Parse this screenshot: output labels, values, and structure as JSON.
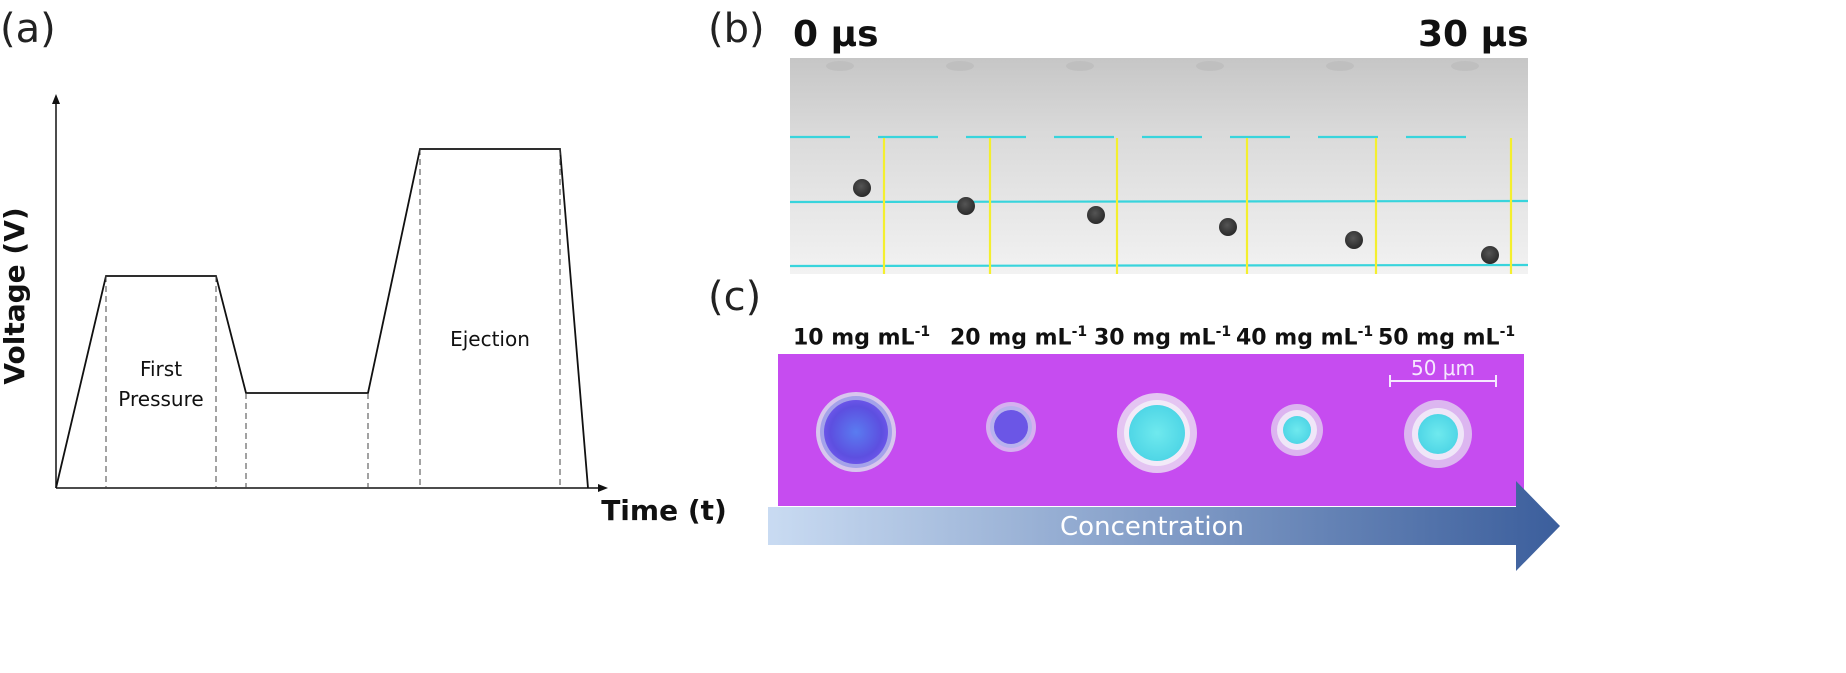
{
  "panels": {
    "a": "(a)",
    "b": "(b)",
    "c": "(c)"
  },
  "waveform": {
    "y_axis_label": "Voltage (V)",
    "x_axis_label": "Time (t)",
    "segment_first": [
      "First",
      "Pressure"
    ],
    "segment_ejection": "Ejection",
    "levels": {
      "baseline": 0,
      "first_pressure": 0.62,
      "dwell": 0.28,
      "ejection": 1.0
    }
  },
  "sequence": {
    "start_time": "0 μs",
    "end_time": "30 μs",
    "frame_count": 6,
    "droplet_depth_fraction": [
      0.37,
      0.45,
      0.52,
      0.59,
      0.65,
      0.72
    ],
    "colors": {
      "background": "#d9d9d9",
      "reference_line": "#38d4dc",
      "marker_line": "#f4ef2e",
      "droplet": "#3a3a3a"
    }
  },
  "concentration": {
    "labels": [
      {
        "value": "10 mg mL",
        "sup": "-1"
      },
      {
        "value": "20 mg mL",
        "sup": "-1"
      },
      {
        "value": "30 mg mL",
        "sup": "-1"
      },
      {
        "value": "40 mg mL",
        "sup": "-1"
      },
      {
        "value": "50 mg mL",
        "sup": "-1"
      }
    ],
    "scale_bar": "50 μm",
    "arrow_label": "Concentration",
    "colors": {
      "background": "#c64cf0",
      "arrow_start": "#c9dbf2",
      "arrow_end": "#3b5e9c"
    }
  }
}
